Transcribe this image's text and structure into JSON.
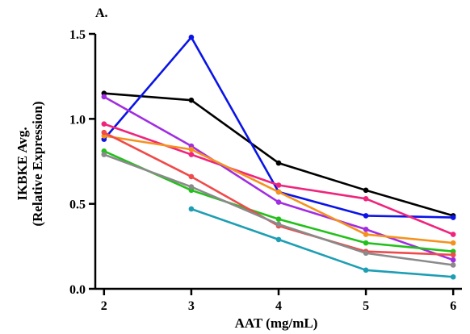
{
  "chart_data": {
    "type": "line",
    "panel_label": "A.",
    "xlabel": "AAT (mg/mL)",
    "ylabel_line1": "IKBKE Avg.",
    "ylabel_line2": "(Relative Expression)",
    "x": [
      2,
      3,
      4,
      5,
      6
    ],
    "x_ticks": [
      "2",
      "3",
      "4",
      "5",
      "6"
    ],
    "xlim": [
      1.9,
      6.1
    ],
    "ylim": [
      0,
      1.5
    ],
    "y_ticks": [
      "0.0",
      "0.5",
      "1.0",
      "1.5"
    ],
    "grid": false,
    "legend": "none",
    "series": [
      {
        "color": "#000000",
        "values": [
          1.15,
          1.11,
          0.74,
          0.58,
          0.43
        ]
      },
      {
        "color": "#0a14e6",
        "values": [
          0.88,
          1.48,
          0.57,
          0.43,
          0.42
        ]
      },
      {
        "color": "#f0247c",
        "values": [
          0.97,
          0.79,
          0.61,
          0.53,
          0.32
        ]
      },
      {
        "color": "#a02ee0",
        "values": [
          1.13,
          0.84,
          0.51,
          0.35,
          0.17
        ]
      },
      {
        "color": "#f5921e",
        "values": [
          0.9,
          0.82,
          0.57,
          0.32,
          0.27
        ]
      },
      {
        "color": "#22c01a",
        "values": [
          0.81,
          0.58,
          0.41,
          0.27,
          0.22
        ]
      },
      {
        "color": "#f04a4a",
        "values": [
          0.92,
          0.66,
          0.37,
          0.22,
          0.2
        ]
      },
      {
        "color": "#8a8a8a",
        "values": [
          0.79,
          0.6,
          0.38,
          0.21,
          0.14
        ]
      },
      {
        "color": "#1e9eb4",
        "values": [
          null,
          0.47,
          0.29,
          0.11,
          0.07
        ]
      }
    ]
  }
}
